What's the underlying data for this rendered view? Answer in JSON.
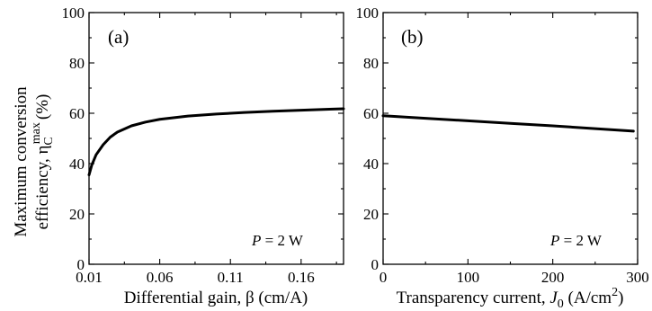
{
  "chart_data": [
    {
      "type": "line",
      "panel_label": "(a)",
      "annotation": {
        "var": "P",
        "rest": " = 2 W"
      },
      "xlabel": "Differential gain, β (cm/A)",
      "ylabel": {
        "line1": "Maximum conversion",
        "line2": "efficiency, η",
        "sub": "C",
        "sup": "max",
        "unit": "(%)"
      },
      "xlim": [
        0.01,
        0.19
      ],
      "ylim": [
        0,
        100
      ],
      "xticks": [
        0.01,
        0.06,
        0.11,
        0.16
      ],
      "xtick_labels": [
        "0.01",
        "0.06",
        "0.11",
        "0.16"
      ],
      "yticks": [
        0,
        20,
        40,
        60,
        80,
        100
      ],
      "ytick_labels": [
        "0",
        "20",
        "40",
        "60",
        "80",
        "100"
      ],
      "series": [
        {
          "x": [
            0.01,
            0.012,
            0.015,
            0.02,
            0.025,
            0.03,
            0.04,
            0.05,
            0.06,
            0.08,
            0.1,
            0.12,
            0.14,
            0.16,
            0.18,
            0.19
          ],
          "y": [
            35.5,
            39.5,
            43.5,
            47.5,
            50.5,
            52.5,
            55.0,
            56.5,
            57.6,
            58.9,
            59.7,
            60.3,
            60.8,
            61.2,
            61.6,
            61.8
          ]
        }
      ]
    },
    {
      "type": "line",
      "panel_label": "(b)",
      "annotation": {
        "var": "P",
        "rest": " = 2 W"
      },
      "xlabel": {
        "text": "Transparency current, ",
        "var": "J",
        "sub": "0",
        "unit": " (A/cm",
        "sup": "2",
        "close": ")"
      },
      "xlim": [
        0,
        300
      ],
      "ylim": [
        0,
        100
      ],
      "xticks": [
        0,
        100,
        200,
        300
      ],
      "xtick_labels": [
        "0",
        "100",
        "200",
        "300"
      ],
      "yticks": [
        0,
        20,
        40,
        60,
        80,
        100
      ],
      "ytick_labels": [
        "0",
        "20",
        "40",
        "60",
        "80",
        "100"
      ],
      "series": [
        {
          "x": [
            0,
            50,
            100,
            150,
            200,
            250,
            295
          ],
          "y": [
            59.0,
            58.0,
            57.0,
            56.0,
            55.0,
            53.9,
            52.9
          ]
        }
      ]
    }
  ]
}
